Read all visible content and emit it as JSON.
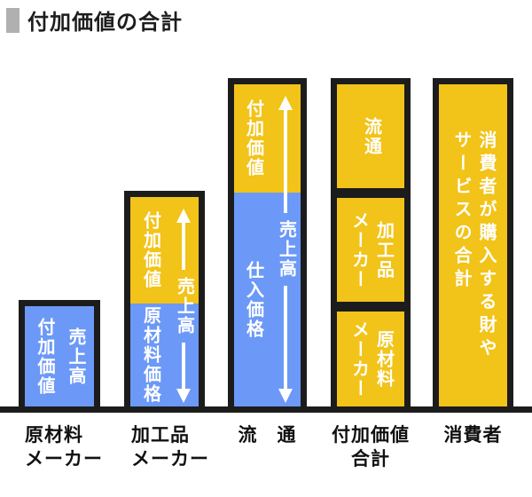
{
  "title": "付加価値の合計",
  "colors": {
    "blue": "#6C99F7",
    "yellow": "#F2C318",
    "ink": "#1C1C1C",
    "label": "#111111",
    "marker": "#B0B0B0",
    "bar-text": "#FFFFFF"
  },
  "bars": {
    "raw_material_maker": {
      "left_text": "付加価値",
      "right_text": "売上高",
      "label_line1": "原材料",
      "label_line2": "メーカー"
    },
    "processed_goods_maker": {
      "upper_left_text": "付加価値",
      "lower_left_text": "原材料価格",
      "arrow_text": "売上高",
      "label_line1": "加工品",
      "label_line2": "メーカー"
    },
    "distribution": {
      "upper_left_text": "付加価値",
      "lower_left_text": "仕入価格",
      "arrow_text": "売上高",
      "label": "流　通"
    },
    "value_added_total": {
      "seg1_text": "流通",
      "seg2_right_text": "加工品",
      "seg2_left_text": "メーカー",
      "seg3_right_text": "原材料",
      "seg3_left_text": "メーカー",
      "label_line1": "付加価値",
      "label_line2": "合計"
    },
    "consumer": {
      "col_right_text": "消費者が購入する財や",
      "col_left_text": "サービスの合計",
      "label": "消費者"
    }
  },
  "chart_data": {
    "type": "bar",
    "subtype": "stacked-conceptual",
    "title": "付加価値の合計",
    "categories": [
      "原材料メーカー",
      "加工品メーカー",
      "流通",
      "付加価値合計",
      "消費者"
    ],
    "unit": "relative height (estimated px, no numeric axis shown)",
    "ylim": [
      0,
      370
    ],
    "grid": false,
    "legend": false,
    "stacks": [
      {
        "category": "原材料メーカー",
        "segments": [
          {
            "label": "付加価値（売上高）",
            "color": "blue",
            "value": 120
          }
        ]
      },
      {
        "category": "加工品メーカー",
        "annotation": "売上高＝バー全体（上下両矢印）",
        "segments": [
          {
            "label": "原材料価格",
            "color": "blue",
            "value": 116
          },
          {
            "label": "付加価値",
            "color": "yellow",
            "value": 127
          }
        ]
      },
      {
        "category": "流通",
        "annotation": "売上高＝バー全体（上下両矢印）",
        "segments": [
          {
            "label": "仕入価格",
            "color": "blue",
            "value": 241
          },
          {
            "label": "付加価値",
            "color": "yellow",
            "value": 129
          }
        ]
      },
      {
        "category": "付加価値合計",
        "segments": [
          {
            "label": "原材料メーカー",
            "color": "yellow",
            "value": 114
          },
          {
            "label": "加工品メーカー",
            "color": "yellow",
            "value": 127
          },
          {
            "label": "流通",
            "color": "yellow",
            "value": 129
          }
        ]
      },
      {
        "category": "消費者",
        "segments": [
          {
            "label": "消費者が購入する財やサービスの合計",
            "color": "yellow",
            "value": 370
          }
        ]
      }
    ]
  }
}
